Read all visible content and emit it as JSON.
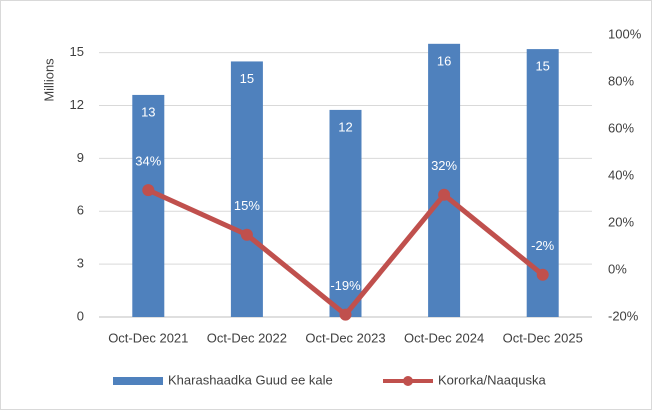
{
  "chart_data": {
    "type": "bar_line",
    "categories": [
      "Oct-Dec 2021",
      "Oct-Dec 2022",
      "Oct-Dec 2023",
      "Oct-Dec 2024",
      "Oct-Dec 2025"
    ],
    "ylabel": "Millions",
    "series": [
      {
        "name": "Kharashaadka Guud ee kale",
        "type": "bar",
        "color": "#4f81bd",
        "values": [
          12.6,
          14.5,
          11.75,
          15.5,
          15.2
        ],
        "value_labels": [
          "13",
          "15",
          "12",
          "16",
          "15"
        ]
      },
      {
        "name": "Kororka/Naaquska",
        "type": "line",
        "axis": "y2",
        "color": "#c0504d",
        "values": [
          34,
          15,
          -19,
          32,
          -2
        ],
        "value_labels": [
          "34%",
          "15%",
          "-19%",
          "32%",
          "-2%"
        ]
      }
    ],
    "ylim": [
      0,
      16
    ],
    "yticks": [
      0,
      3,
      6,
      9,
      12,
      15
    ],
    "y2lim": [
      -20,
      100
    ],
    "y2ticks": [
      {
        "value": -20,
        "label": "-20%"
      },
      {
        "value": 0,
        "label": "0%"
      },
      {
        "value": 20,
        "label": "20%"
      },
      {
        "value": 40,
        "label": "40%"
      },
      {
        "value": 60,
        "label": "60%"
      },
      {
        "value": 80,
        "label": "80%"
      },
      {
        "value": 100,
        "label": "100%"
      }
    ],
    "grid": true,
    "legend": "bottom"
  }
}
